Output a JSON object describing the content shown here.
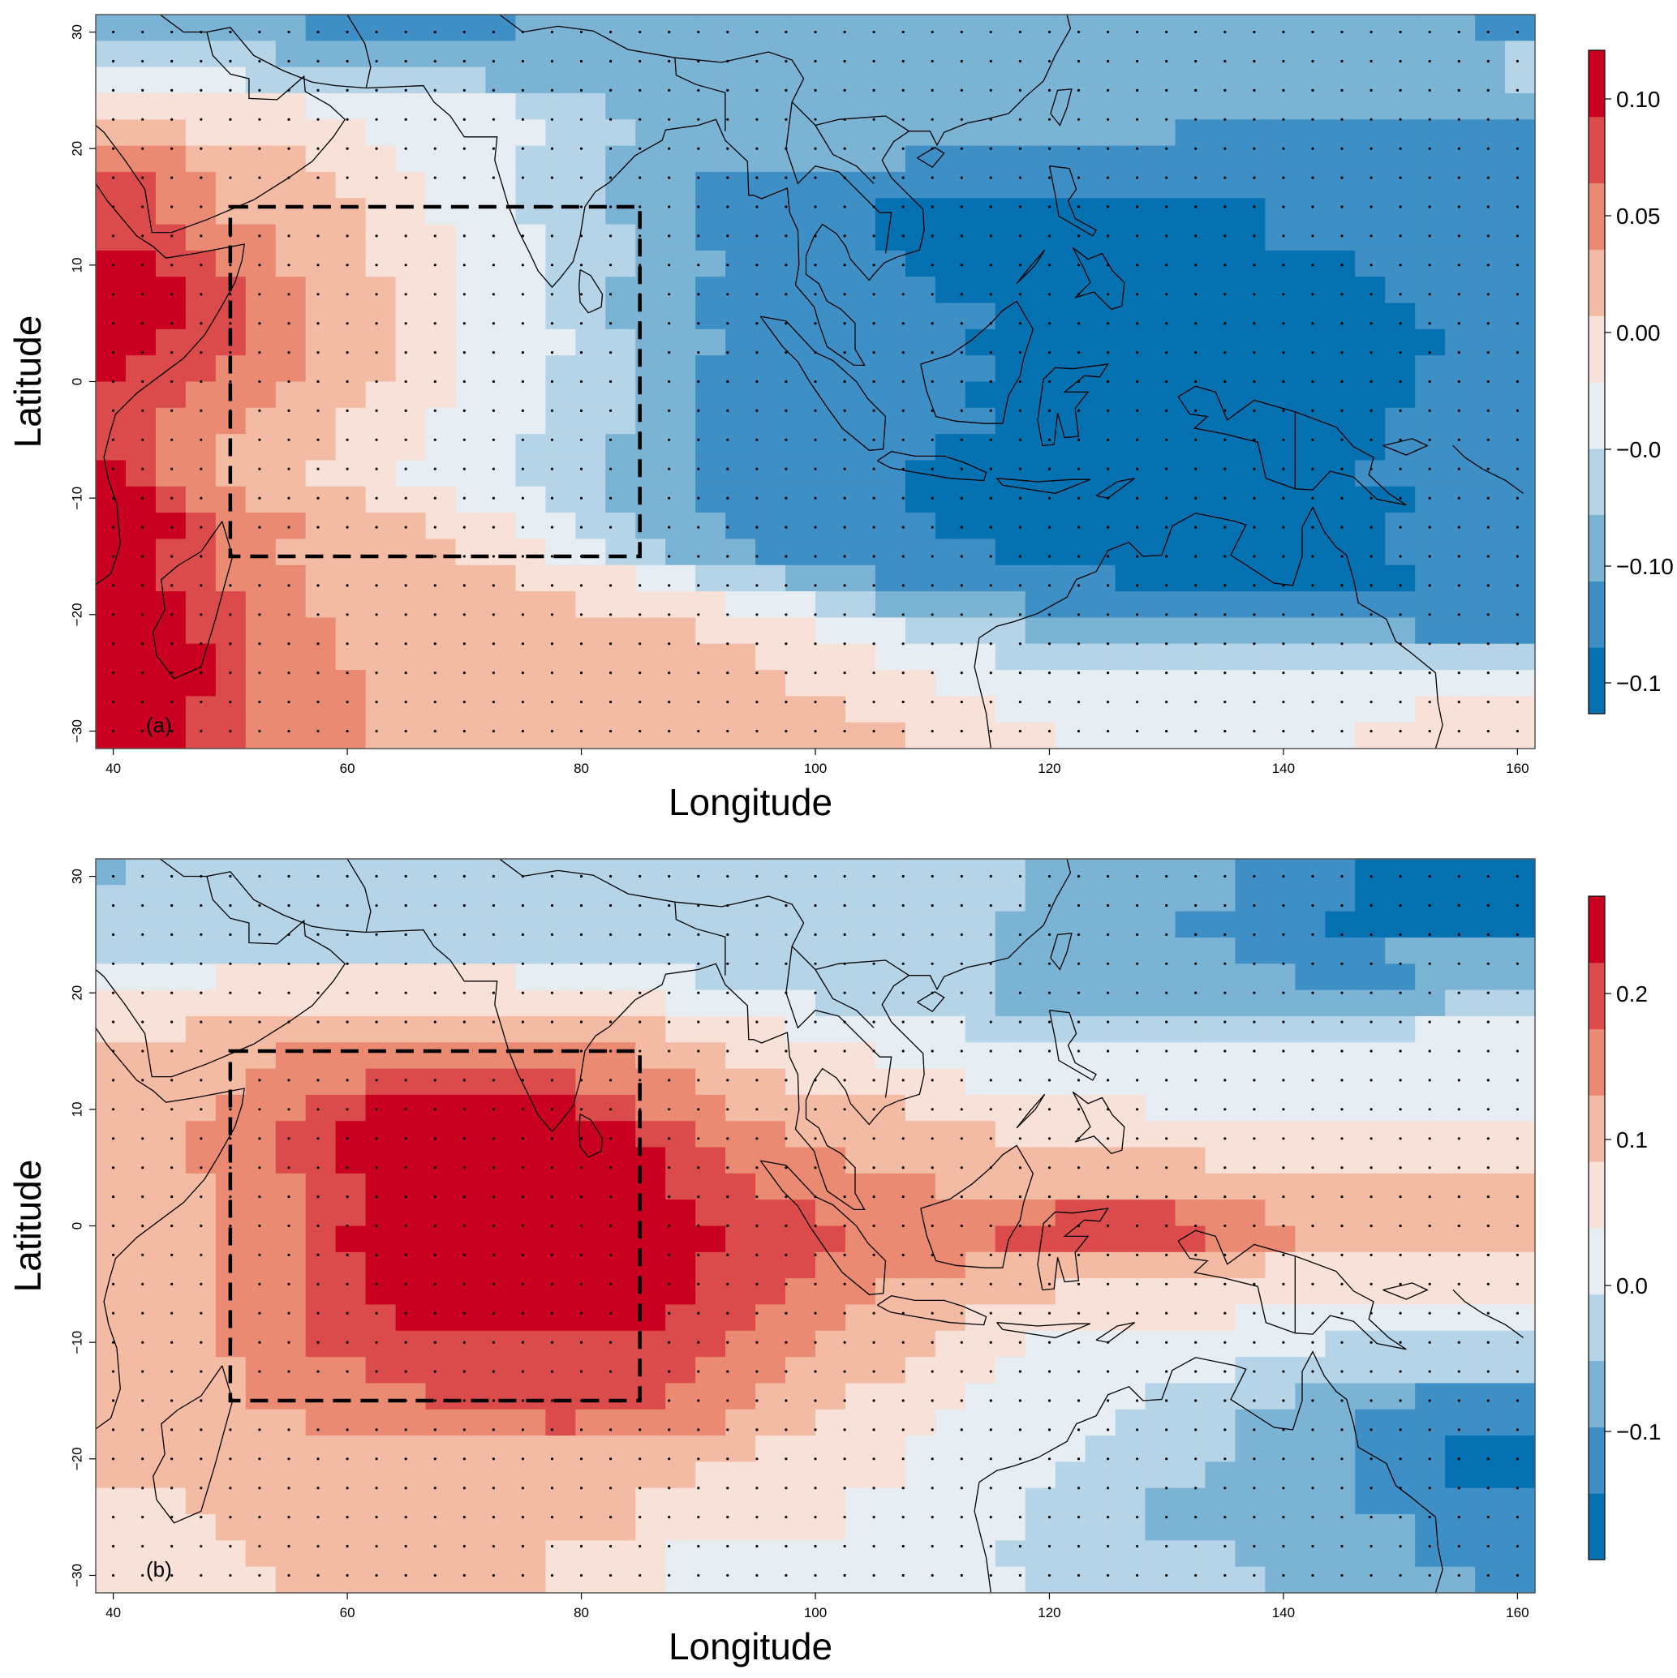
{
  "colors": {
    "ramp": [
      "#0571b0",
      "#3e8fc5",
      "#7bb3d5",
      "#b6d4e7",
      "#e6eef3",
      "#f8e1d8",
      "#f4bba4",
      "#ea8a72",
      "#dc4b4b",
      "#ca0020"
    ],
    "coast": "#000000",
    "box": "#000000",
    "frame": "#555555"
  },
  "panels": [
    {
      "id": "a",
      "label": "(a)",
      "xlabel": "Longitude",
      "ylabel": "Latitude",
      "x_ticks": [
        "40",
        "60",
        "80",
        "100",
        "120",
        "140",
        "160"
      ],
      "y_ticks": [
        "30",
        "20",
        "10",
        "0",
        "−10",
        "−20",
        "−30"
      ],
      "colorbar_ticks": [
        "0.10",
        "0.05",
        "0.00",
        "−0.0",
        "−0.10",
        "−0.1"
      ],
      "colorbar_range": [
        -0.14,
        0.12
      ],
      "grid": [
        "44444444445555555566666666666666666666667777777799",
        "44444444445555555566666666666666666666667777777777",
        "55544444445555555577777777777777777777777777777777",
        "55555566666666666666666666666666666666666666666666",
        "66666666666666666666666666666666666666666666666666",
        "66666666666666666666666666666666666666666666666666",
        "66666666666666666666666666666666666666666666666666",
        "66666666666666666666666666666666666666666666666666"
      ],
      "rows": [
        "66666666888888888887777777777777766666666655555555",
        "66666666788888888887777777777777766666666655555555",
        "66666666666688888888777777777777766666666655555555",
        "66666666666666888888887777777777777777777777755555",
        "66666666666666666888888887777777777777777777766666",
        "99999999999999999999999999999999999999999999999999"
      ],
      "field": [
        "CCCCCCCBBBBBBBCCCCCCCCCCCCCCCCCCCCCCCCCCCCCCCCBB",
        "DDDDDDCCCCCCCCCCCCCCCCCCCCCCCCCCCCCCCCCCCCCCCCCD",
        "EEEEEDDDDDDDDCCCCCCCCCCCCCCCCCCCCCCCCCCCCCCCCCCD",
        "FFFFFFFEEEEEEEDDDCCCCCCCCCCCCCCCCCCCCCCCCCCCCCCC",
        "GGGFFFFFFEEEEEEDDDCCCCCCCCCCCCCCCCCCBBBBBBBBBBBB",
        "HHHGGGGFFFEEEEDDDCCCCCCCCCCBBBBBBBBBBBBBBBBBBBBB",
        "IIHHGGGGFFFEEEDDDCCCBBBBBBBBBBBBBBBBBBBBBBBBBBBB",
        "IIHHGGGGGFFEEEDDDCCCBBBBBBAAAAAAAAAAAAABBBBBBBBB",
        "IIIHHHGGGFFFEEEDDDCCBBBBBBAAAAAAAAAAAAABBBBBBBBB",
        "JJIIHHGGGFFFEEEDDDCCCBBBBBBAAAAAAAAAAAAAAABBBBBB",
        "JJJIIHHGGGFFEEEDDCCCBBBBBBBBAAAAAAAAAAAAAAABBBBB",
        "JJJIIHHGGGFFEEEDDCCCBBBBBBBBBBAAAAAAAAAAAAAABBBB",
        "JJIIIHHGGGFFEEEEDDCCCBBBBBBBBAAAAAAAAAAAAAAAABBB",
        "JIIIHHHGGGFFEEEDDDCCBBBBBBBBBBAAAAAAAAAAAAAABBBB",
        "IIIHHHGGGFFFEEEDDDCCBBBBBBBBBAAAAAAAAAAAAAAABBBB",
        "IIHHHGGGFFFEEEEDDDCCBBBBBBBBBBAAAAAAAAAAAAABBBBB",
        "IIHHGGGGFFFEEEDDDCCCBBBBBBBBAAAAAAAAAAAAAAABBBBB",
        "JIHHGGGFFFEEEEDDDCCCBBBBBBBAAAAAAAAAAAAAAABBBBBB",
        "JJIHHGGGGFFFEEEDDCCCBBBBBBBAAAAAAAAAAAAAAAAABBBB",
        "JJJIHHHGGGGFFFEEDDCCCBBBBBBBAAAAAAAAAAAAAAABBBBB",
        "JJIIHHGGGGGGFFFEEDDCCCBBBBBBBBAAAAAAAAAAAAABBBBB",
        "JJIIHHHGGGGGGGFFFFEEDDDCCCBBBBBBBBAAAAAAAAAABBBB",
        "JJJIIHHGGGGGGGGGFFFFFEEEDDCCCCCBBBBBBBBBBBBBBBBB",
        "JJJIIHHHGGGGGGGGGGGGFFFFEEEDDDDCCCCCCCCCCCCCBBBB",
        "JJJJIHHHGGGGGGGGGGGGGGFFFFEEEEDDDDDDDDDDDDDDDDDD",
        "JJJJIHHHHGGGGGGGGGGGGGGFFFFFEEEEEEEEEEEEEEEEEEEE",
        "JJJIIHHHHGGGGGGGGGGGGGGGGFFFFFEEEEEEEEEEEEEEFFFF",
        "JJJIIHHHHGGGGGGGGGGGGGGGGGGFFFFFEEEEEEEEEEFFFFFF"
      ]
    },
    {
      "id": "b",
      "label": "(b)",
      "xlabel": "Longitude",
      "ylabel": "Latitude",
      "x_ticks": [
        "40",
        "60",
        "80",
        "100",
        "120",
        "140",
        "160"
      ],
      "y_ticks": [
        "30",
        "20",
        "10",
        "0",
        "−10",
        "−20",
        "−30"
      ],
      "colorbar_ticks": [
        "0.2",
        "0.1",
        "0.0",
        "−0.1"
      ],
      "colorbar_range": [
        -0.2,
        0.26
      ],
      "field": [
        "CDDDDDDDDDDDDDDDDDDDDDDDDDDDDDDCCCCCCCBBBBAAAAAA",
        "DDDDDDDDDDDDDDDDDDDDDDDDDDDDDDDCCCCCCCBBBBAAAAAA",
        "DDDDDDDDDDDDDDDDDDDDDDDDDDDDDDCCCCCCBBBBBAAAAAAA",
        "DDDDDDDDDDDDDDDDDDDDDDDDDDDDDDCCCCCCCCBBBBBCCCCC",
        "EEEEFFFFFFFFFFEEEEEEDDDDDDDDDDCCCCCCCCCCBBBBCCCC",
        "FFFFFFFFFFFFFFFFFFFEEEEEDDDDDDCCCCCCCCCCCCCCCDDD",
        "FFFGGGGGGGGGGGGGGGGFFFFEEEEEEDDDDDDDDDDDDDDDEEEE",
        "GGGGGGHHHHHHHHHHHHGGGFFFFFEEEEEEEEEEEEEEEEEEEEEE",
        "GGGGGHHHHIIIIIIIHHHHGGGFFFFFFEEEEEEEEEEEEEEEEEEE",
        "GGGGHHHIIJJJJJJJIIHHHGGGGGGFFFFFFFFEEEEEEEEEEEEE",
        "GGGHHHIIJJJJJJJJJJIIHHHGGGGGGGFFFFFFFFFFFFFFFFFF",
        "GGGHHHIIJJJJJJJJJJJIIHHHHGGGGGGGGGGGGFFFFFFFFFFF",
        "GGGGHHHIIJJJJJJJJJJIIIHHHHHHGGGGGGGGGGGGGGGGGGGG",
        "GGGGHHHIIJJJJJJJJJJJIIIIHHHHHHHHIIIIHHHGGGGGGGGG",
        "GGGGHHHIJJJJJJJJJJJJJIIIIHHHHHIIIIIIIHHHGGGGGGGG",
        "GGGGHHHIIJJJJJJJJJJJIIIIHHHHHGGGGGGGGGGFFFFFFFFF",
        "GGGGHHHIIJJJJJJJJJJJIIIHHHGGGGGGFFFFFFFFFFFFFFFF",
        "GGGGHHHIIIJJJJJJJJJIIIHHHGGGGFFFFFFFFFEEEEEEEEEE",
        "GGGGHHHIIIIIIIIIIIIIIHHHGGGGFFFEEEEEEEEEEDDDDDDD",
        "GGGGGHHHHIIIIIIIIIIIHHHGGGGFFFEEEEEEEEDDDDDDDDDD",
        "GGGGGHHHHHHIIIIIIIIHHHGGGFFFFEEEEEEDDDDDCCCCBBBB",
        "GGGGGGGHHHHHHHHIHHHHHGGGFFFFEEEEEEDDDDCCCCBBBBBB",
        "GGGGGGGGGGGGGGGGGGGGGGFFFFFEEEEEEDDDDDCCCCBBBAAA",
        "GGGGGGGGGGGGGGGGGGGGFFFFFFFEEEEEDDDDDCCCCCBBBAAA",
        "FFFGGGGGGGGGGGGGGGFFFFFFFEEEEEEDDDDCCCCCCCBBBBBB",
        "FFFFGGGGGGGGGGGGGGFFFFFFFEEEEEEDDDDCCCCCCCCCBBBB",
        "FFFFFGGGGGGGGGGFFFFEEEEEEEEEEEDDDDDDDDCCCCCCBBBB",
        "FFFFFFGGGGGGGGGFFFFEEEEEEEEEEEEDDDDDDDDCCCCCCCBB"
      ]
    }
  ]
}
